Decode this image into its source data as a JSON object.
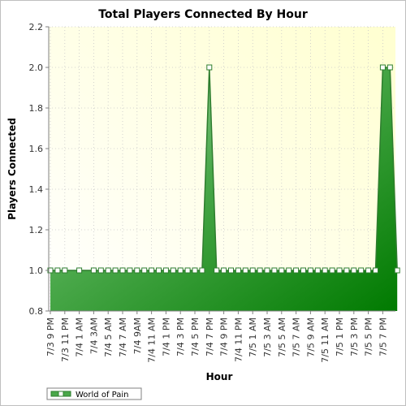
{
  "chart_data": {
    "type": "area",
    "title": "Total Players Connected By Hour",
    "xlabel": "Hour",
    "ylabel": "Players Connected",
    "ylim": [
      0.8,
      2.2
    ],
    "yticks": [
      "0.8",
      "1.0",
      "1.2",
      "1.4",
      "1.6",
      "1.8",
      "2.0",
      "2.2"
    ],
    "grid": true,
    "legend_position": "bottom-left",
    "colors": {
      "fill_dark": "#008000",
      "fill_light": "#a6d6a6",
      "line": "#2e7d2e",
      "plot_bg": "#ffffe0",
      "marker_fill": "#ffffff"
    },
    "x_tick_labels": [
      "7/3 9 PM",
      "7/3 11 PM",
      "7/4 1 AM",
      "7/4 3AM",
      "7/4 5 AM",
      "7/4 7 AM",
      "7/4 9AM",
      "7/4 11 AM",
      "7/4 1 PM",
      "7/4 3 PM",
      "7/4 5 PM",
      "7/4 7 PM",
      "7/4 9 PM",
      "7/4 11 PM",
      "7/5 1 AM",
      "7/5 3 AM",
      "7/5 5 AM",
      "7/5 7 AM",
      "7/5 9 AM",
      "7/5 11 AM",
      "7/5 1 PM",
      "7/5 3 PM",
      "7/5 5 PM",
      "7/5 7 PM"
    ],
    "series": [
      {
        "name": "World of Pain",
        "points": [
          {
            "x": 0,
            "y": 1.0
          },
          {
            "x": 1,
            "y": 1.0
          },
          {
            "x": 2,
            "y": 1.0
          },
          {
            "x": 4,
            "y": 1.0
          },
          {
            "x": 6,
            "y": 1.0
          },
          {
            "x": 7,
            "y": 1.0
          },
          {
            "x": 8,
            "y": 1.0
          },
          {
            "x": 9,
            "y": 1.0
          },
          {
            "x": 10,
            "y": 1.0
          },
          {
            "x": 11,
            "y": 1.0
          },
          {
            "x": 12,
            "y": 1.0
          },
          {
            "x": 13,
            "y": 1.0
          },
          {
            "x": 14,
            "y": 1.0
          },
          {
            "x": 15,
            "y": 1.0
          },
          {
            "x": 16,
            "y": 1.0
          },
          {
            "x": 17,
            "y": 1.0
          },
          {
            "x": 18,
            "y": 1.0
          },
          {
            "x": 19,
            "y": 1.0
          },
          {
            "x": 20,
            "y": 1.0
          },
          {
            "x": 21,
            "y": 1.0
          },
          {
            "x": 22,
            "y": 2.0
          },
          {
            "x": 23,
            "y": 1.0
          },
          {
            "x": 24,
            "y": 1.0
          },
          {
            "x": 25,
            "y": 1.0
          },
          {
            "x": 26,
            "y": 1.0
          },
          {
            "x": 27,
            "y": 1.0
          },
          {
            "x": 28,
            "y": 1.0
          },
          {
            "x": 29,
            "y": 1.0
          },
          {
            "x": 30,
            "y": 1.0
          },
          {
            "x": 31,
            "y": 1.0
          },
          {
            "x": 32,
            "y": 1.0
          },
          {
            "x": 33,
            "y": 1.0
          },
          {
            "x": 34,
            "y": 1.0
          },
          {
            "x": 35,
            "y": 1.0
          },
          {
            "x": 36,
            "y": 1.0
          },
          {
            "x": 37,
            "y": 1.0
          },
          {
            "x": 38,
            "y": 1.0
          },
          {
            "x": 39,
            "y": 1.0
          },
          {
            "x": 40,
            "y": 1.0
          },
          {
            "x": 41,
            "y": 1.0
          },
          {
            "x": 42,
            "y": 1.0
          },
          {
            "x": 43,
            "y": 1.0
          },
          {
            "x": 44,
            "y": 1.0
          },
          {
            "x": 45,
            "y": 1.0
          },
          {
            "x": 46,
            "y": 2.0
          },
          {
            "x": 47,
            "y": 2.0
          },
          {
            "x": 48,
            "y": 1.0
          }
        ]
      }
    ]
  }
}
